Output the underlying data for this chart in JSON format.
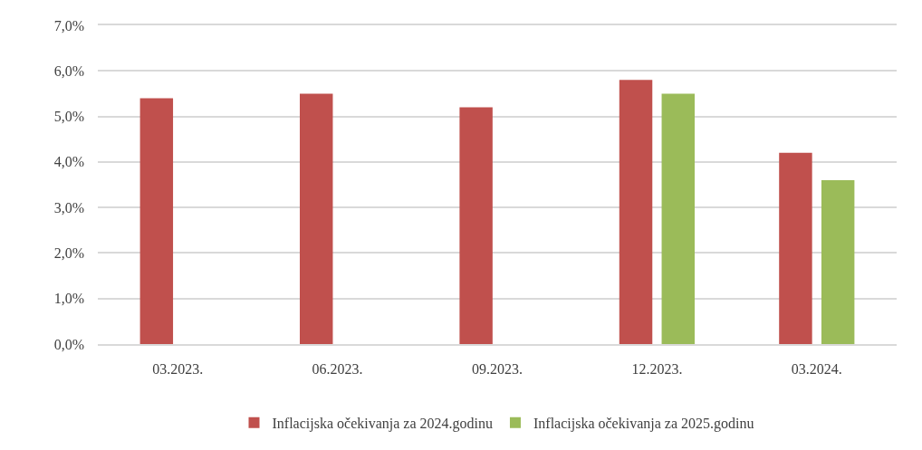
{
  "chart_data": {
    "type": "bar",
    "categories": [
      "03.2023.",
      "06.2023.",
      "09.2023.",
      "12.2023.",
      "03.2024."
    ],
    "series": [
      {
        "name": "Inflacijska očekivanja za 2024.godinu",
        "color": "#c0504d",
        "values": [
          5.4,
          5.5,
          5.2,
          5.8,
          4.2
        ]
      },
      {
        "name": "Inflacijska očekivanja za 2025.godinu",
        "color": "#9bbb59",
        "values": [
          null,
          null,
          null,
          5.5,
          3.6
        ]
      }
    ],
    "ylim": [
      0,
      7
    ],
    "yticks": [
      {
        "value": 0,
        "label": "0,0%"
      },
      {
        "value": 1,
        "label": "1,0%"
      },
      {
        "value": 2,
        "label": "2,0%"
      },
      {
        "value": 3,
        "label": "3,0%"
      },
      {
        "value": 4,
        "label": "4,0%"
      },
      {
        "value": 5,
        "label": "5,0%"
      },
      {
        "value": 6,
        "label": "6,0%"
      },
      {
        "value": 7,
        "label": "7,0%"
      }
    ],
    "grid": "y",
    "legend": "bottom"
  }
}
